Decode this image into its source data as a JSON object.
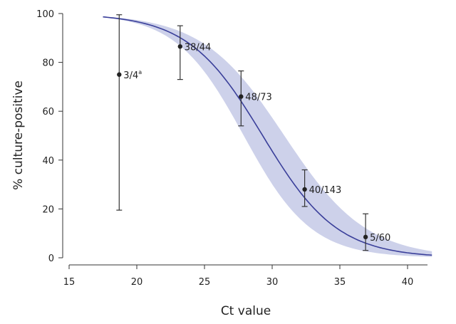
{
  "chart_data": {
    "type": "line",
    "title": "",
    "xlabel": "Ct value",
    "ylabel": "% culture-positive",
    "xlim": [
      14.5,
      42
    ],
    "ylim": [
      0,
      100
    ],
    "x_ticks": [
      15,
      20,
      25,
      30,
      35,
      40
    ],
    "y_ticks": [
      0,
      20,
      40,
      60,
      80,
      100
    ],
    "grid": false,
    "points": [
      {
        "x": 18.7,
        "y": 75,
        "lower": 19.5,
        "upper": 99.5,
        "label": "3/4",
        "superscript": "a"
      },
      {
        "x": 23.2,
        "y": 86.5,
        "lower": 73,
        "upper": 95,
        "label": "38/44",
        "superscript": ""
      },
      {
        "x": 27.7,
        "y": 66,
        "lower": 54,
        "upper": 76.5,
        "label": "48/73",
        "superscript": ""
      },
      {
        "x": 32.4,
        "y": 28,
        "lower": 21,
        "upper": 36,
        "label": "40/143",
        "superscript": ""
      },
      {
        "x": 36.9,
        "y": 8.5,
        "lower": 3,
        "upper": 18,
        "label": "5/60",
        "superscript": ""
      }
    ],
    "fit": {
      "type": "logistic",
      "x_range": [
        17.5,
        41.8
      ],
      "midpoint": 29.3,
      "slope": 0.362
    },
    "confidence_band": {
      "upper": {
        "midpoint": 30.9,
        "slope": 0.33
      },
      "lower": {
        "midpoint": 27.9,
        "slope": 0.4
      }
    },
    "colors": {
      "curve": "#3a3f9a",
      "band": "#cdd1ea",
      "points": "#222222"
    }
  }
}
